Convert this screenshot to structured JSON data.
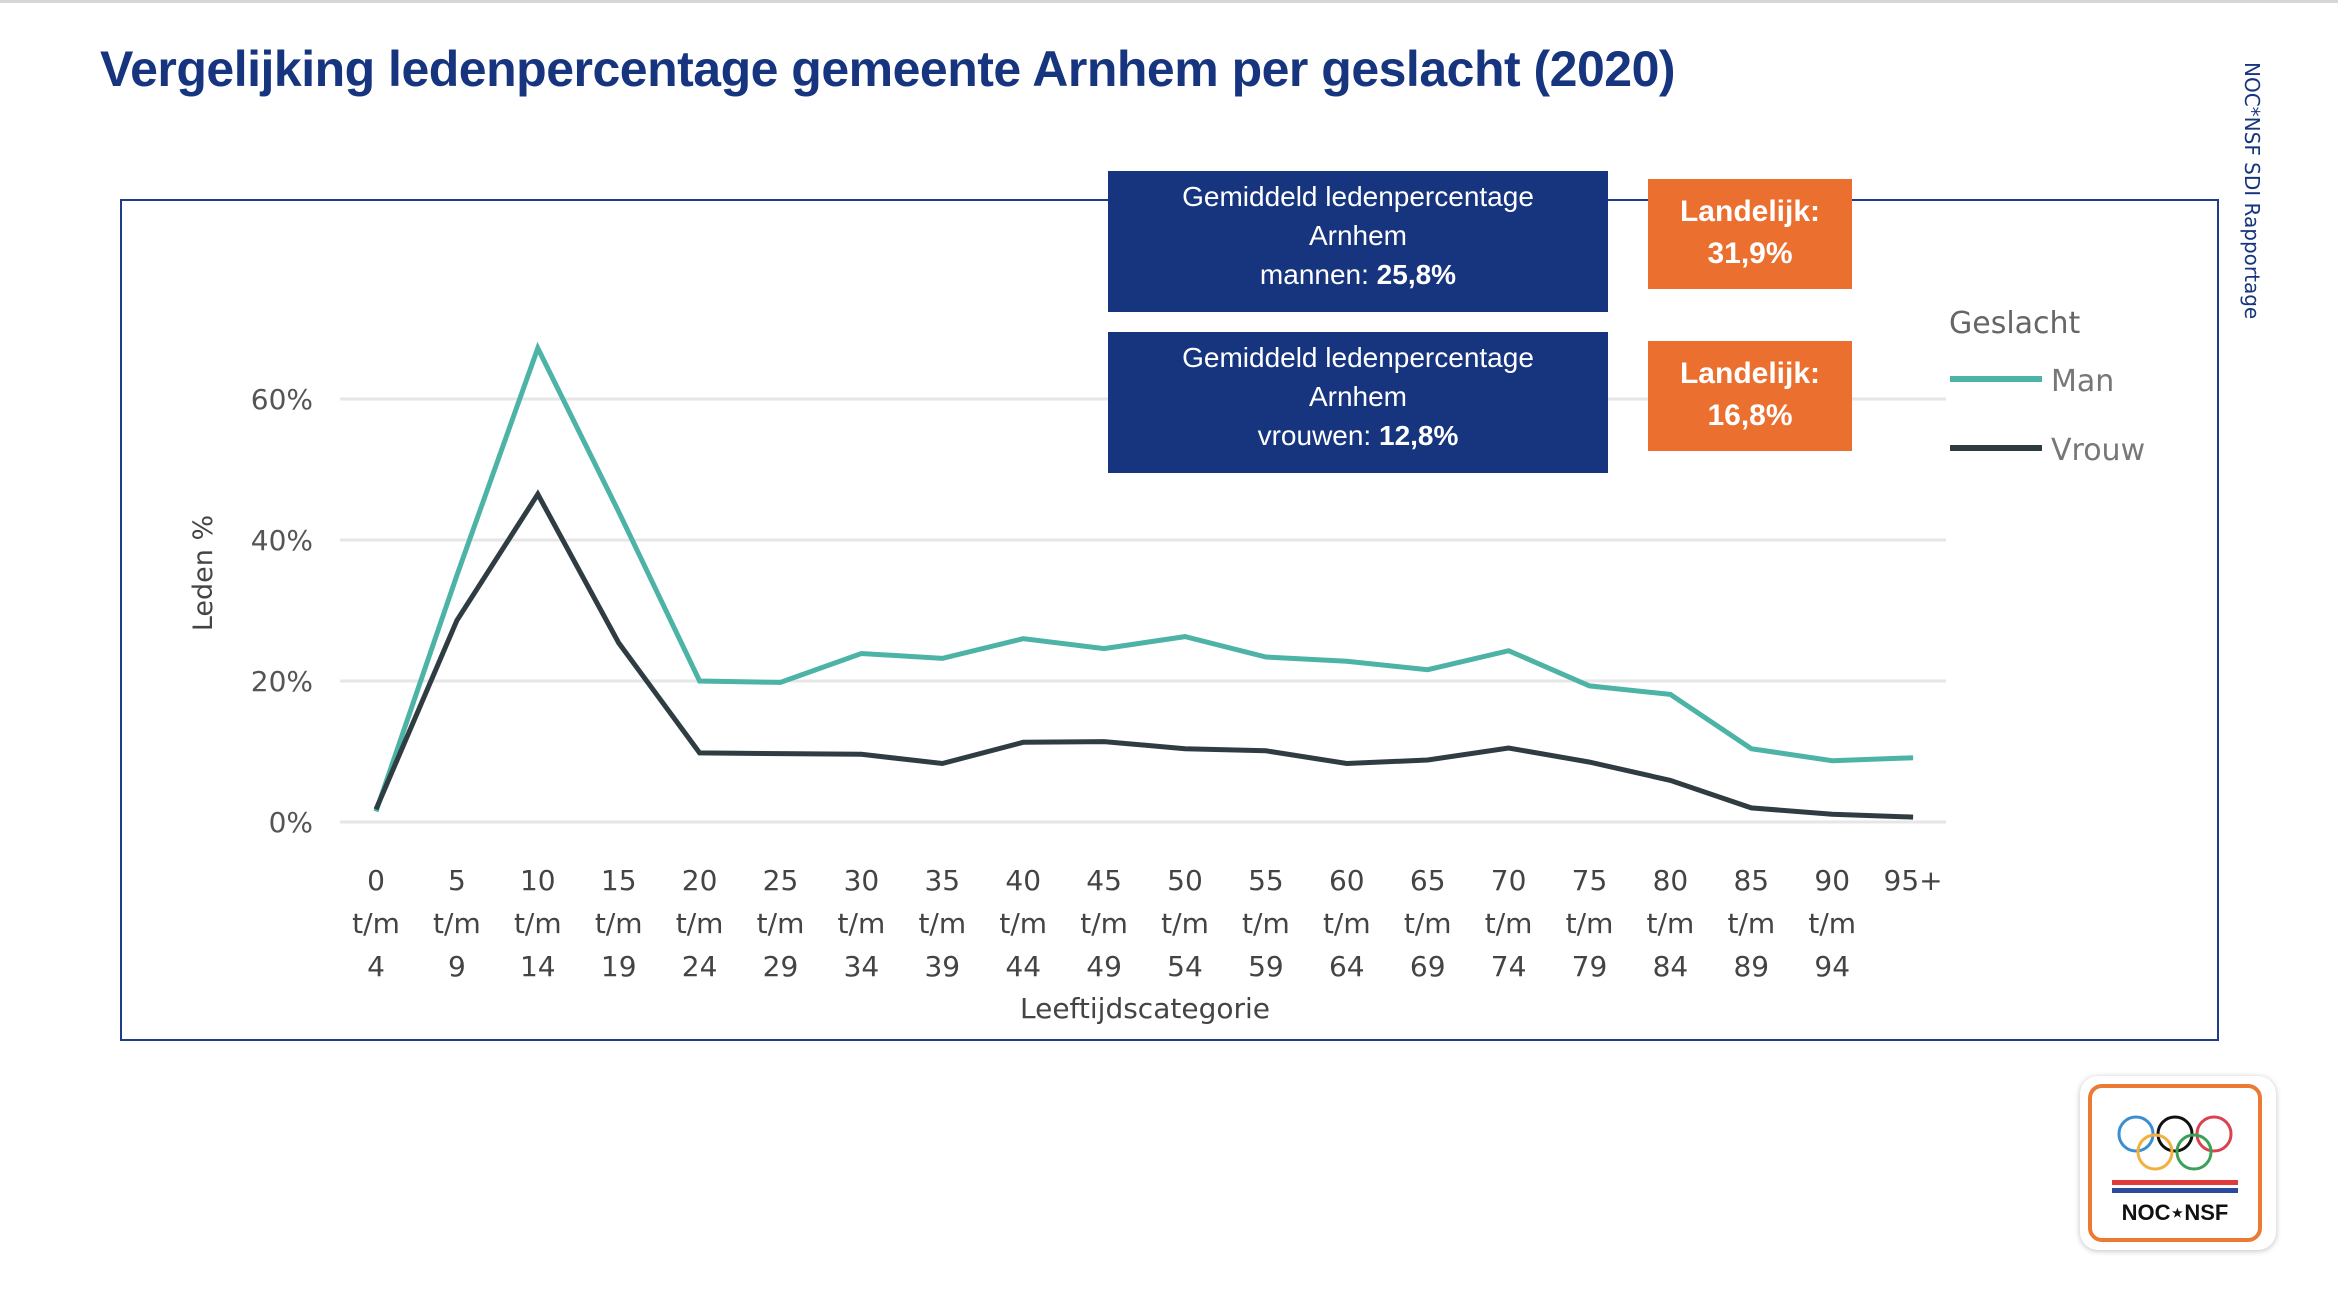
{
  "page": {
    "title": "Vergelijking ledenpercentage gemeente Arnhem per geslacht (2020)",
    "side_label": "NOC*NSF SDI Rapportage"
  },
  "info_boxes": [
    {
      "line1": "Gemiddeld ledenpercentage",
      "line2": "Arnhem",
      "label": "mannen:",
      "value": "25,8%"
    },
    {
      "line1": "Gemiddeld ledenpercentage",
      "line2": "Arnhem",
      "label": "vrouwen:",
      "value": "12,8%"
    }
  ],
  "national_boxes": [
    {
      "label": "Landelijk:",
      "value": "31,9%"
    },
    {
      "label": "Landelijk:",
      "value": "16,8%"
    }
  ],
  "logo": {
    "text": "NOC⋆NSF",
    "ring_colors": [
      "#3b8ed0",
      "#111111",
      "#d9434f",
      "#f2b03e",
      "#3aa157"
    ],
    "flag_colors": [
      "#e03b3b",
      "#ffffff",
      "#2b4a9b"
    ]
  },
  "colors": {
    "brand_blue": "#17357f",
    "accent_orange": "#eb6f2f",
    "man": "#4db3a6",
    "vrouw": "#2f3d42",
    "grid": "#e6e6e6"
  },
  "chart_data": {
    "type": "line",
    "title": "",
    "xlabel": "Leeftijdscategorie",
    "ylabel": "Leden %",
    "ylim": [
      0,
      70
    ],
    "yticks": [
      0,
      20,
      40,
      60
    ],
    "ytick_labels": [
      "0%",
      "20%",
      "40%",
      "60%"
    ],
    "grid": true,
    "legend": {
      "title": "Geslacht",
      "position": "right"
    },
    "categories": [
      [
        "0",
        "t/m",
        "4"
      ],
      [
        "5",
        "t/m",
        "9"
      ],
      [
        "10",
        "t/m",
        "14"
      ],
      [
        "15",
        "t/m",
        "19"
      ],
      [
        "20",
        "t/m",
        "24"
      ],
      [
        "25",
        "t/m",
        "29"
      ],
      [
        "30",
        "t/m",
        "34"
      ],
      [
        "35",
        "t/m",
        "39"
      ],
      [
        "40",
        "t/m",
        "44"
      ],
      [
        "45",
        "t/m",
        "49"
      ],
      [
        "50",
        "t/m",
        "54"
      ],
      [
        "55",
        "t/m",
        "59"
      ],
      [
        "60",
        "t/m",
        "64"
      ],
      [
        "65",
        "t/m",
        "69"
      ],
      [
        "70",
        "t/m",
        "74"
      ],
      [
        "75",
        "t/m",
        "79"
      ],
      [
        "80",
        "t/m",
        "84"
      ],
      [
        "85",
        "t/m",
        "89"
      ],
      [
        "90",
        "t/m",
        "94"
      ],
      [
        "95+"
      ]
    ],
    "series": [
      {
        "name": "Man",
        "color": "#4db3a6",
        "values": [
          1.5,
          35.0,
          67.2,
          44.0,
          20.0,
          19.8,
          23.9,
          23.2,
          26.0,
          24.6,
          26.3,
          23.4,
          22.8,
          21.6,
          24.3,
          19.3,
          18.1,
          10.4,
          8.7,
          9.1
        ]
      },
      {
        "name": "Vrouw",
        "color": "#2f3d42",
        "values": [
          1.8,
          28.6,
          46.5,
          25.4,
          9.8,
          9.7,
          9.6,
          8.3,
          11.3,
          11.4,
          10.4,
          10.1,
          8.3,
          8.8,
          10.5,
          8.5,
          5.9,
          2.0,
          1.1,
          0.7
        ]
      }
    ]
  }
}
